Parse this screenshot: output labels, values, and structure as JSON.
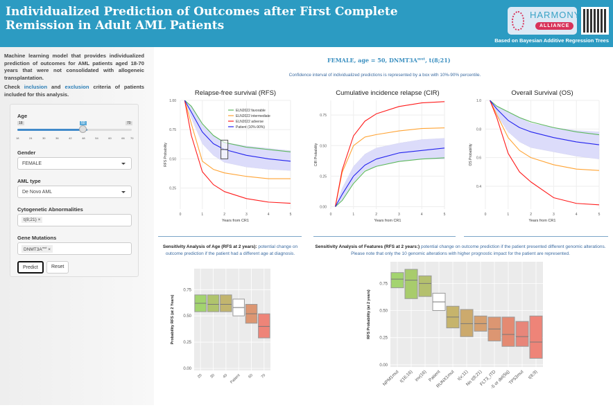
{
  "header": {
    "title": "Individualized Prediction of Outcomes after First Complete Remission in Adult AML Patients",
    "logo_text": "HARMONY",
    "logo_sub": "ALLIANCE",
    "subtitle": "Based on Bayesian Additive Regression Trees"
  },
  "sidebar": {
    "intro": "Machine learning model that provides individualized prediction of outcomes for AML patients aged 18-70 years that were not consolidated with allogeneic transplantation.",
    "check_pre": "Check ",
    "check_link1": "inclusion",
    "check_mid1": " and ",
    "check_link2": "exclusion",
    "check_post": " criteria of patients included for this analysis.",
    "age_label": "Age",
    "age_min": "18",
    "age_max": "70",
    "age_value": "50",
    "age_ticks": [
      "18",
      "24",
      "30",
      "36",
      "42",
      "48",
      "54",
      "60",
      "66",
      "70"
    ],
    "gender_label": "Gender",
    "gender_value": "FEMALE",
    "aml_label": "AML type",
    "aml_value": "De Novo AML",
    "cyto_label": "Cytogenetic Abnormalities",
    "cyto_tag": "t(8;21)",
    "gene_label": "Gene Mutations",
    "gene_tag": "DNMT3A",
    "gene_sup": "mut",
    "remove": "×",
    "predict": "Predict",
    "reset": "Reset"
  },
  "main": {
    "patient_title": "FEMALE, age = 50, DNMT3A",
    "patient_sup": "mut",
    "patient_tail": ", t(8;21)",
    "ci_note": "Confidence interval of individualized predictions is represented by a box with 10%-90% percentile.",
    "age_sens_bold": "Sensitivity Analysis of Age (RFS at 2 years):",
    "age_sens_text": " potential change on outcome prediction if the patient had a different age at diagnosis.",
    "feat_sens_bold": "Sensitivity Analysis of Features (RFS at 2 years:)",
    "feat_sens_text": " potential change on outcome prediction if the patient presented different genomic alterations. Please note that only the 10 genomic alterations with higher prognostic impact for the patient are represented."
  },
  "colors": {
    "header": "#2c9bc2",
    "favorable": "#5cb85c",
    "intermediate": "#ffa333",
    "adverse": "#ff1a1a",
    "patient": "#2222ee",
    "band": "#dcdcfa"
  },
  "chart_data": [
    {
      "type": "line",
      "title": "Relapse-free survival (RFS)",
      "xlabel": "Years from CR1",
      "ylabel": "RFS Probability",
      "xlim": [
        0,
        5
      ],
      "ylim": [
        0.07,
        1.0
      ],
      "yticks": [
        "0.25",
        "0.50",
        "0.75",
        "1.00"
      ],
      "xticks": [
        "0",
        "1",
        "2",
        "3",
        "4",
        "5"
      ],
      "legend": "top-right",
      "x": [
        0.2,
        0.5,
        1,
        1.5,
        2,
        3,
        4,
        5
      ],
      "series": [
        {
          "name": "ELN2022 favorable",
          "values": [
            1,
            0.95,
            0.8,
            0.7,
            0.64,
            0.6,
            0.58,
            0.56
          ]
        },
        {
          "name": "ELN2022 intermediate",
          "values": [
            1,
            0.8,
            0.48,
            0.41,
            0.38,
            0.35,
            0.33,
            0.33
          ]
        },
        {
          "name": "ELN2022 adverse",
          "values": [
            1,
            0.7,
            0.39,
            0.28,
            0.22,
            0.16,
            0.13,
            0.12
          ]
        },
        {
          "name": "Patient (10%-90%)",
          "values": [
            1,
            0.9,
            0.73,
            0.63,
            0.58,
            0.53,
            0.5,
            0.48
          ]
        }
      ],
      "band": {
        "low": [
          1,
          0.85,
          0.63,
          0.53,
          0.47,
          0.43,
          0.41,
          0.4
        ],
        "high": [
          1,
          0.95,
          0.79,
          0.7,
          0.64,
          0.61,
          0.59,
          0.57
        ]
      },
      "box": {
        "x": 2,
        "low": 0.5,
        "median": 0.58,
        "high": 0.66
      }
    },
    {
      "type": "line",
      "title": "Cumulative incidence relapse (CIR)",
      "xlabel": "Years from CR1",
      "ylabel": "CIR Probability",
      "xlim": [
        0,
        5
      ],
      "ylim": [
        -0.02,
        0.87
      ],
      "yticks": [
        "0.00",
        "0.25",
        "0.50",
        "0.75"
      ],
      "xticks": [
        "0",
        "1",
        "2",
        "3",
        "4",
        "5"
      ],
      "x": [
        0.2,
        0.5,
        1,
        1.5,
        2,
        3,
        4,
        5
      ],
      "series": [
        {
          "values": [
            0,
            0.05,
            0.19,
            0.29,
            0.33,
            0.37,
            0.39,
            0.4
          ]
        },
        {
          "values": [
            0,
            0.28,
            0.5,
            0.57,
            0.59,
            0.62,
            0.64,
            0.645
          ]
        },
        {
          "values": [
            0,
            0.3,
            0.58,
            0.7,
            0.76,
            0.82,
            0.85,
            0.86
          ]
        },
        {
          "values": [
            0,
            0.1,
            0.25,
            0.34,
            0.39,
            0.44,
            0.46,
            0.48
          ]
        }
      ],
      "band": {
        "low": [
          0,
          0.06,
          0.2,
          0.3,
          0.33,
          0.37,
          0.39,
          0.39
        ],
        "high": [
          0,
          0.15,
          0.33,
          0.43,
          0.48,
          0.52,
          0.55,
          0.56
        ]
      }
    },
    {
      "type": "line",
      "title": "Overall Survival (OS)",
      "xlabel": "Years from CR1",
      "ylabel": "OS Probability",
      "xlim": [
        0,
        5
      ],
      "ylim": [
        0.24,
        1.0
      ],
      "yticks": [
        "0.4",
        "0.6",
        "0.8",
        "1.0"
      ],
      "xticks": [
        "0",
        "1",
        "2",
        "3",
        "4",
        "5"
      ],
      "x": [
        0.2,
        0.5,
        1,
        1.5,
        2,
        3,
        4,
        5
      ],
      "series": [
        {
          "values": [
            1,
            0.96,
            0.92,
            0.88,
            0.85,
            0.81,
            0.78,
            0.76
          ]
        },
        {
          "values": [
            1,
            0.9,
            0.74,
            0.65,
            0.6,
            0.55,
            0.52,
            0.51
          ]
        },
        {
          "values": [
            1,
            0.88,
            0.63,
            0.5,
            0.43,
            0.32,
            0.28,
            0.27
          ]
        },
        {
          "values": [
            1,
            0.94,
            0.86,
            0.81,
            0.78,
            0.74,
            0.71,
            0.69
          ]
        }
      ],
      "band": {
        "low": [
          1,
          0.9,
          0.78,
          0.71,
          0.67,
          0.64,
          0.61,
          0.59
        ],
        "high": [
          1,
          0.96,
          0.92,
          0.88,
          0.84,
          0.81,
          0.79,
          0.78
        ]
      }
    },
    {
      "type": "box",
      "ylabel": "Probability RFS (at 2 Years)",
      "ylim": [
        -0.02,
        0.95
      ],
      "yticks": [
        "0.00",
        "0.25",
        "0.50",
        "0.75"
      ],
      "categories": [
        "20",
        "30",
        "40",
        "Patient",
        "60",
        "70"
      ],
      "low": [
        0.54,
        0.54,
        0.54,
        0.5,
        0.43,
        0.29
      ],
      "median": [
        0.62,
        0.61,
        0.61,
        0.58,
        0.52,
        0.4
      ],
      "high": [
        0.7,
        0.7,
        0.7,
        0.66,
        0.61,
        0.52
      ],
      "fills": [
        "#a3d46f",
        "#b0c46c",
        "#c2b56e",
        "#ffffff",
        "#dc9672",
        "#ee8478"
      ]
    },
    {
      "type": "box",
      "ylabel": "RFS Probability (at 2 years)",
      "ylim": [
        -0.02,
        0.95
      ],
      "yticks": [
        "0.00",
        "0.25",
        "0.50",
        "0.75"
      ],
      "categories": [
        "NPM1mut",
        "t(16;16)",
        "inv(16)",
        "Patient",
        "RUNX1mut",
        "t(v;11)",
        "No t(8;21)",
        "FLT3_ITD",
        "-5 or del(5q)",
        "TP53mut",
        "t(6;9)"
      ],
      "low": [
        0.71,
        0.61,
        0.63,
        0.5,
        0.34,
        0.26,
        0.31,
        0.22,
        0.17,
        0.17,
        0.06
      ],
      "median": [
        0.79,
        0.78,
        0.75,
        0.58,
        0.44,
        0.38,
        0.38,
        0.33,
        0.28,
        0.26,
        0.21
      ],
      "high": [
        0.85,
        0.88,
        0.82,
        0.66,
        0.54,
        0.51,
        0.45,
        0.44,
        0.44,
        0.4,
        0.45
      ],
      "fills": [
        "#a3d46f",
        "#a8cc6c",
        "#b4c06e",
        "#ffffff",
        "#c6b46c",
        "#ccaa6d",
        "#d6a070",
        "#dc9672",
        "#e48a72",
        "#e8867a",
        "#ee8478"
      ]
    }
  ]
}
